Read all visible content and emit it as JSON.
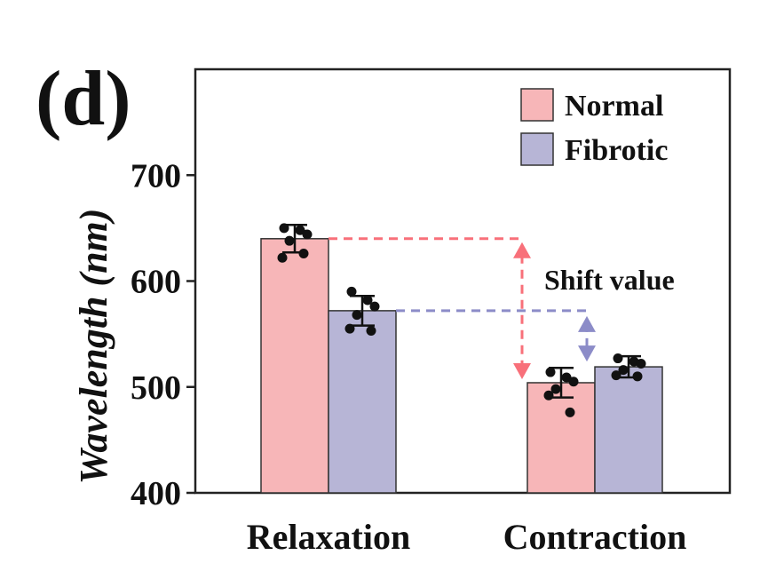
{
  "panel_label": "(d)",
  "chart_data": {
    "type": "bar",
    "ylabel": "Wavelength (nm)",
    "ylim": [
      400,
      800
    ],
    "yticks": [
      400,
      500,
      600,
      700
    ],
    "categories": [
      "Relaxation",
      "Contraction"
    ],
    "series": [
      {
        "name": "Normal",
        "color": "#f7b6b8",
        "values": [
          640,
          504
        ],
        "errors": [
          13,
          14
        ],
        "points": [
          [
            650,
            648,
            644,
            638,
            622,
            626
          ],
          [
            514,
            509,
            505,
            498,
            492,
            476
          ]
        ]
      },
      {
        "name": "Fibrotic",
        "color": "#b7b5d6",
        "values": [
          572,
          519
        ],
        "errors": [
          14,
          10
        ],
        "points": [
          [
            590,
            582,
            576,
            568,
            555,
            553
          ],
          [
            527,
            524,
            522,
            516,
            511,
            510
          ]
        ]
      }
    ],
    "legend_position": "top-right",
    "annotation": {
      "text": "Shift value",
      "normal_color": "#f8707a",
      "fibrotic_color": "#8c8cc8"
    }
  }
}
